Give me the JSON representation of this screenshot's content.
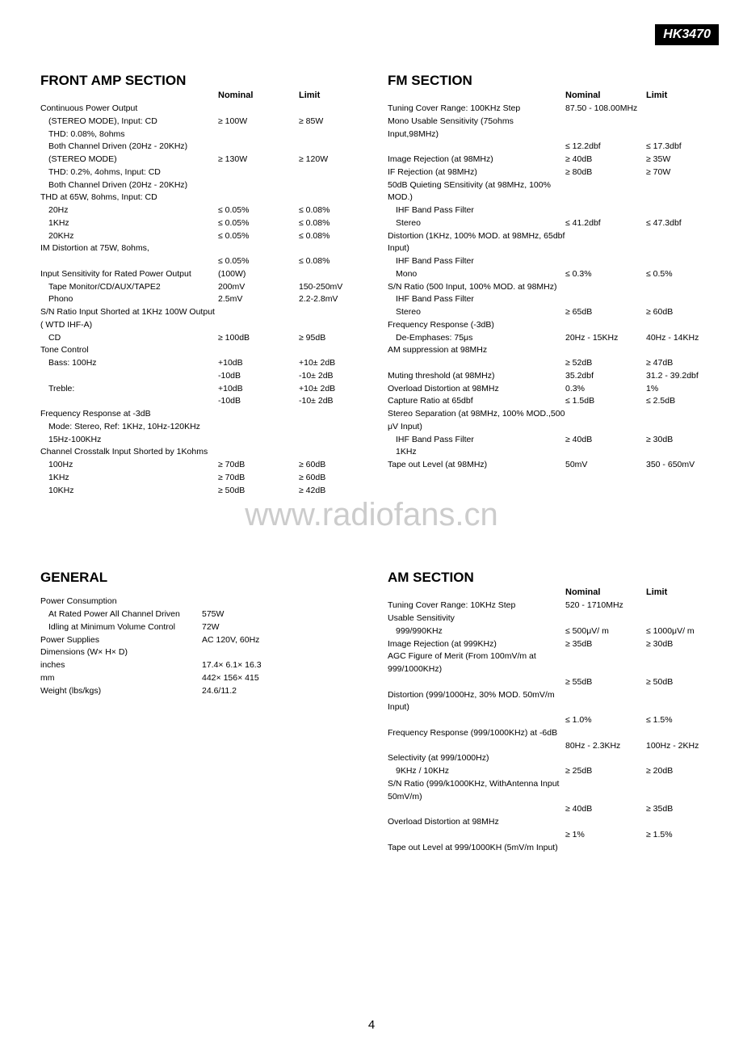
{
  "model": "HK3470",
  "watermark": "www.radiofans.cn",
  "pageNumber": "4",
  "headers": {
    "nominal": "Nominal",
    "limit": "Limit"
  },
  "frontAmp": {
    "title": "FRONT AMP SECTION",
    "rows": [
      {
        "label": "Continuous Power Output",
        "indent": 0,
        "nominal": "",
        "limit": ""
      },
      {
        "label": "(STEREO MODE), Input: CD",
        "indent": 1,
        "nominal": "≥ 100W",
        "limit": "≥ 85W"
      },
      {
        "label": "THD: 0.08%, 8ohms",
        "indent": 1,
        "nominal": "",
        "limit": ""
      },
      {
        "label": "Both Channel Driven (20Hz - 20KHz)",
        "indent": 1,
        "nominal": "",
        "limit": ""
      },
      {
        "label": "(STEREO MODE)",
        "indent": 1,
        "nominal": "≥ 130W",
        "limit": "≥ 120W"
      },
      {
        "label": "THD: 0.2%, 4ohms, Input: CD",
        "indent": 1,
        "nominal": "",
        "limit": ""
      },
      {
        "label": "Both Channel Driven (20Hz - 20KHz)",
        "indent": 1,
        "nominal": "",
        "limit": ""
      },
      {
        "label": "THD at 65W, 8ohms, Input: CD",
        "indent": 0,
        "nominal": "",
        "limit": ""
      },
      {
        "label": "20Hz",
        "indent": 1,
        "nominal": "≤ 0.05%",
        "limit": "≤ 0.08%"
      },
      {
        "label": "1KHz",
        "indent": 1,
        "nominal": "≤ 0.05%",
        "limit": "≤ 0.08%"
      },
      {
        "label": "20KHz",
        "indent": 1,
        "nominal": "≤ 0.05%",
        "limit": "≤ 0.08%"
      },
      {
        "label": "IM Distortion at 75W, 8ohms,",
        "indent": 0,
        "nominal": "",
        "limit": ""
      },
      {
        "label": "",
        "indent": 1,
        "nominal": "≤ 0.05%",
        "limit": "≤ 0.08%"
      },
      {
        "label": "Input Sensitivity for Rated Power Output",
        "indent": 0,
        "nominal": "(100W)",
        "limit": ""
      },
      {
        "label": "Tape Monitor/CD/AUX/TAPE2",
        "indent": 1,
        "nominal": "200mV",
        "limit": "150-250mV"
      },
      {
        "label": "Phono",
        "indent": 1,
        "nominal": "2.5mV",
        "limit": "2.2-2.8mV"
      },
      {
        "label": "S/N Ratio Input Shorted at 1KHz 100W Output ( WTD IHF-A)",
        "indent": 0,
        "nominal": "",
        "limit": ""
      },
      {
        "label": "CD",
        "indent": 1,
        "nominal": "≥ 100dB",
        "limit": "≥ 95dB"
      },
      {
        "label": "Tone Control",
        "indent": 0,
        "nominal": "",
        "limit": ""
      },
      {
        "label": "Bass: 100Hz",
        "indent": 1,
        "nominal": "+10dB",
        "limit": "+10±  2dB"
      },
      {
        "label": "",
        "indent": 1,
        "nominal": "-10dB",
        "limit": "-10±  2dB"
      },
      {
        "label": "Treble:",
        "indent": 1,
        "nominal": "+10dB",
        "limit": "+10±  2dB"
      },
      {
        "label": "",
        "indent": 1,
        "nominal": "-10dB",
        "limit": "-10±  2dB"
      },
      {
        "label": "Frequency Response at -3dB",
        "indent": 0,
        "nominal": "",
        "limit": ""
      },
      {
        "label": "Mode: Stereo, Ref: 1KHz, 10Hz-120KHz 15Hz-100KHz",
        "indent": 1,
        "nominal": "",
        "limit": ""
      },
      {
        "label": "Channel Crosstalk Input Shorted by 1Kohms",
        "indent": 0,
        "nominal": "",
        "limit": ""
      },
      {
        "label": "100Hz",
        "indent": 1,
        "nominal": "≥ 70dB",
        "limit": "≥ 60dB"
      },
      {
        "label": "1KHz",
        "indent": 1,
        "nominal": "≥ 70dB",
        "limit": "≥ 60dB"
      },
      {
        "label": "10KHz",
        "indent": 1,
        "nominal": "≥ 50dB",
        "limit": "≥ 42dB"
      }
    ]
  },
  "fm": {
    "title": "FM SECTION",
    "rows": [
      {
        "label": "Tuning Cover Range: 100KHz Step",
        "indent": 0,
        "nominal": "87.50 - 108.00MHz",
        "limit": ""
      },
      {
        "label": "Mono Usable Sensitivity (75ohms Input,98MHz)",
        "indent": 0,
        "nominal": "",
        "limit": ""
      },
      {
        "label": "",
        "indent": 1,
        "nominal": "≤ 12.2dbf",
        "limit": "≤ 17.3dbf"
      },
      {
        "label": "Image Rejection (at 98MHz)",
        "indent": 0,
        "nominal": "≥ 40dB",
        "limit": "≥ 35W"
      },
      {
        "label": "IF Rejection (at 98MHz)",
        "indent": 0,
        "nominal": "≥ 80dB",
        "limit": "≥ 70W"
      },
      {
        "label": "50dB Quieting SEnsitivity (at 98MHz, 100% MOD.)",
        "indent": 0,
        "nominal": "",
        "limit": ""
      },
      {
        "label": "IHF Band Pass Filter",
        "indent": 1,
        "nominal": "",
        "limit": ""
      },
      {
        "label": "Stereo",
        "indent": 1,
        "nominal": "≤ 41.2dbf",
        "limit": "≤ 47.3dbf"
      },
      {
        "label": "Distortion (1KHz, 100% MOD. at 98MHz, 65dbf Input)",
        "indent": 0,
        "nominal": "",
        "limit": ""
      },
      {
        "label": "IHF Band Pass Filter",
        "indent": 1,
        "nominal": "",
        "limit": ""
      },
      {
        "label": "Mono",
        "indent": 1,
        "nominal": "≤ 0.3%",
        "limit": "≤ 0.5%"
      },
      {
        "label": "S/N Ratio (500 Input, 100% MOD. at 98MHz)",
        "indent": 0,
        "nominal": "",
        "limit": ""
      },
      {
        "label": "IHF Band Pass Filter",
        "indent": 1,
        "nominal": "",
        "limit": ""
      },
      {
        "label": "Stereo",
        "indent": 1,
        "nominal": "≥ 65dB",
        "limit": "≥ 60dB"
      },
      {
        "label": "Frequency Response (-3dB)",
        "indent": 0,
        "nominal": "",
        "limit": ""
      },
      {
        "label": "De-Emphases: 75μs",
        "indent": 1,
        "nominal": "20Hz - 15KHz",
        "limit": "40Hz - 14KHz"
      },
      {
        "label": "AM suppression at 98MHz",
        "indent": 0,
        "nominal": "",
        "limit": ""
      },
      {
        "label": "",
        "indent": 1,
        "nominal": "≥ 52dB",
        "limit": "≥ 47dB"
      },
      {
        "label": "Muting threshold (at 98MHz)",
        "indent": 0,
        "nominal": "35.2dbf",
        "limit": "31.2 - 39.2dbf"
      },
      {
        "label": "Overload Distortion at 98MHz",
        "indent": 0,
        "nominal": "0.3%",
        "limit": "1%"
      },
      {
        "label": "Capture Ratio at 65dbf",
        "indent": 0,
        "nominal": "≤ 1.5dB",
        "limit": "≤ 2.5dB"
      },
      {
        "label": "Stereo Separation (at 98MHz, 100% MOD.,500 μV Input)",
        "indent": 0,
        "nominal": "",
        "limit": ""
      },
      {
        "label": "IHF Band Pass Filter",
        "indent": 1,
        "nominal": "≥ 40dB",
        "limit": "≥ 30dB"
      },
      {
        "label": "1KHz",
        "indent": 1,
        "nominal": "",
        "limit": ""
      },
      {
        "label": "Tape out Level (at 98MHz)",
        "indent": 0,
        "nominal": "50mV",
        "limit": "350 - 650mV"
      }
    ]
  },
  "general": {
    "title": "GENERAL",
    "rows": [
      {
        "label": "Power Consumption",
        "indent": 0,
        "value": ""
      },
      {
        "label": "At Rated Power All Channel Driven",
        "indent": 1,
        "value": "575W"
      },
      {
        "label": "Idling at Minimum Volume Control",
        "indent": 1,
        "value": "72W"
      },
      {
        "label": "Power Supplies",
        "indent": 0,
        "value": "AC 120V, 60Hz"
      },
      {
        "label": "Dimensions (W×  H×  D)",
        "indent": 0,
        "value": ""
      },
      {
        "label": "inches",
        "indent": 0,
        "value": "17.4×  6.1×  16.3"
      },
      {
        "label": "mm",
        "indent": 0,
        "value": "442×  156×  415"
      },
      {
        "label": "Weight (lbs/kgs)",
        "indent": 0,
        "value": "24.6/11.2"
      }
    ]
  },
  "am": {
    "title": "AM SECTION",
    "rows": [
      {
        "label": "Tuning Cover Range: 10KHz Step",
        "indent": 0,
        "nominal": "520 - 1710MHz",
        "limit": ""
      },
      {
        "label": "Usable Sensitivity",
        "indent": 0,
        "nominal": "",
        "limit": ""
      },
      {
        "label": "999/990KHz",
        "indent": 1,
        "nominal": "≤ 500μV/ m",
        "limit": "≤ 1000μV/ m"
      },
      {
        "label": "Image Rejection (at 999KHz)",
        "indent": 0,
        "nominal": "≥ 35dB",
        "limit": "≥ 30dB"
      },
      {
        "label": "AGC Figure of Merit (From 100mV/m at 999/1000KHz)",
        "indent": 0,
        "nominal": "",
        "limit": ""
      },
      {
        "label": "",
        "indent": 1,
        "nominal": "≥ 55dB",
        "limit": "≥ 50dB"
      },
      {
        "label": "Distortion (999/1000Hz, 30% MOD. 50mV/m Input)",
        "indent": 0,
        "nominal": "",
        "limit": ""
      },
      {
        "label": "",
        "indent": 1,
        "nominal": "≤ 1.0%",
        "limit": "≤ 1.5%"
      },
      {
        "label": "Frequency Response (999/1000KHz) at -6dB",
        "indent": 0,
        "nominal": "",
        "limit": ""
      },
      {
        "label": "",
        "indent": 1,
        "nominal": "80Hz - 2.3KHz",
        "limit": "100Hz - 2KHz"
      },
      {
        "label": "Selectivity (at 999/1000Hz)",
        "indent": 0,
        "nominal": "",
        "limit": ""
      },
      {
        "label": "9KHz / 10KHz",
        "indent": 1,
        "nominal": "≥ 25dB",
        "limit": "≥ 20dB"
      },
      {
        "label": "S/N Ratio (999/k1000KHz, WithAntenna Input 50mV/m)",
        "indent": 0,
        "nominal": "",
        "limit": ""
      },
      {
        "label": "",
        "indent": 1,
        "nominal": "≥ 40dB",
        "limit": "≥ 35dB"
      },
      {
        "label": "Overload Distortion at 98MHz",
        "indent": 0,
        "nominal": "",
        "limit": ""
      },
      {
        "label": "",
        "indent": 1,
        "nominal": "≥ 1%",
        "limit": "≥ 1.5%"
      },
      {
        "label": "Tape out Level at 999/1000KH (5mV/m Input)",
        "indent": 0,
        "nominal": "",
        "limit": ""
      }
    ]
  }
}
